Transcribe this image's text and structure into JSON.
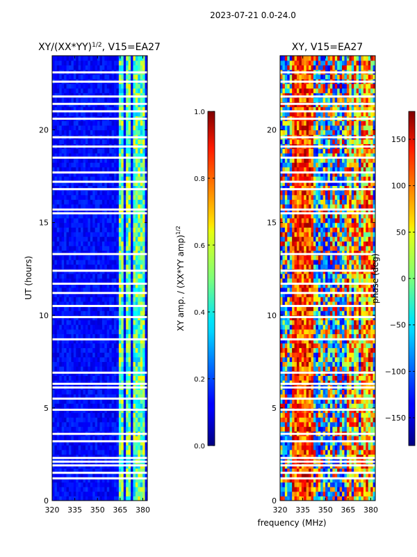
{
  "suptitle": "2023-07-21 0.0-24.0",
  "shared_xlabel": "frequency (MHz)",
  "colors": {
    "background": "#ffffff",
    "axis": "#000000",
    "gap": "#ffffff"
  },
  "chart_data": [
    {
      "type": "heatmap",
      "title_main": "XY/(XX*YY)",
      "title_exp": "1/2",
      "title_suffix": ", V15=EA27",
      "xlabel": "",
      "ylabel": "UT (hours)",
      "xlim": [
        320,
        383
      ],
      "ylim": [
        0,
        24
      ],
      "xticks": [
        "320",
        "335",
        "350",
        "365",
        "380"
      ],
      "xtick_values": [
        320,
        335,
        350,
        365,
        380
      ],
      "yticks": [
        "0",
        "5",
        "10",
        "15",
        "20"
      ],
      "ytick_values": [
        0,
        5,
        10,
        15,
        20
      ],
      "quantity": "amplitude",
      "bright_channels_MHz": [
        [
          364,
          367
        ],
        [
          369,
          372
        ],
        [
          373,
          376
        ],
        [
          377,
          381
        ]
      ],
      "data_gaps_hours": [
        1.2,
        1.5,
        1.9,
        2.1,
        2.3,
        3.2,
        3.6,
        4.9,
        5.5,
        6.1,
        6.3,
        6.9,
        8.7,
        9.9,
        10.5,
        11.2,
        11.7,
        12.4,
        13.3,
        15.5,
        15.7,
        16.8,
        17.2,
        17.7,
        18.5,
        19.1,
        19.6,
        20.6,
        21.0,
        21.4,
        21.8,
        22.6,
        23.1
      ],
      "colorbar": {
        "label_main": "XY amp. / (XX*YY amp)",
        "label_exp": "1/2",
        "range": [
          0.0,
          1.0
        ],
        "ticks": [
          "0.0",
          "0.2",
          "0.4",
          "0.6",
          "0.8",
          "1.0"
        ],
        "tick_values": [
          0.0,
          0.2,
          0.4,
          0.6,
          0.8,
          1.0
        ]
      }
    },
    {
      "type": "heatmap",
      "title": "XY, V15=EA27",
      "xlabel": "frequency (MHz)",
      "ylabel": "",
      "xlim": [
        320,
        383
      ],
      "ylim": [
        0,
        24
      ],
      "xticks": [
        "320",
        "335",
        "350",
        "365",
        "380"
      ],
      "xtick_values": [
        320,
        335,
        350,
        365,
        380
      ],
      "yticks": [
        "0",
        "5",
        "10",
        "15",
        "20"
      ],
      "ytick_values": [
        0,
        5,
        10,
        15,
        20
      ],
      "quantity": "phase",
      "bright_channels_MHz": [
        [
          364,
          367
        ],
        [
          369,
          372
        ],
        [
          373,
          376
        ],
        [
          377,
          381
        ]
      ],
      "data_gaps_hours": [
        1.2,
        1.5,
        1.9,
        2.1,
        2.3,
        3.2,
        3.6,
        4.9,
        5.5,
        6.1,
        6.3,
        6.9,
        8.7,
        9.9,
        10.5,
        11.2,
        11.7,
        12.4,
        13.3,
        15.5,
        15.7,
        16.8,
        17.2,
        17.7,
        18.5,
        19.1,
        19.6,
        20.6,
        21.0,
        21.4,
        21.8,
        22.6,
        23.1
      ],
      "colorbar": {
        "label": "phase (deg)",
        "range": [
          -180,
          180
        ],
        "ticks": [
          "−150",
          "−100",
          "−50",
          "0",
          "50",
          "100",
          "150"
        ],
        "tick_values": [
          -150,
          -100,
          -50,
          0,
          50,
          100,
          150
        ]
      }
    }
  ]
}
